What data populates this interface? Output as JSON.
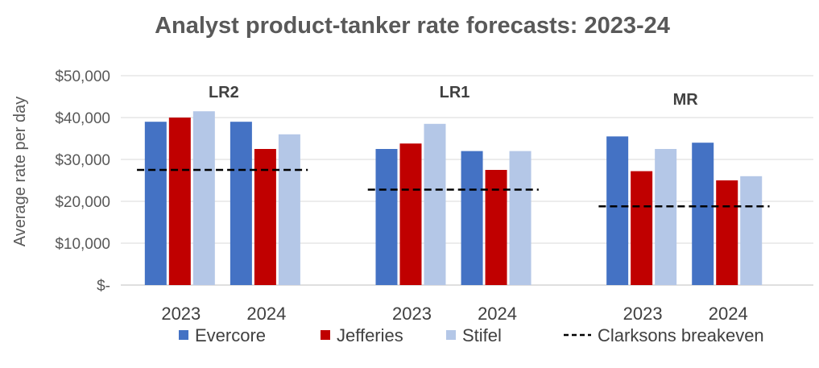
{
  "chart_data": {
    "type": "bar",
    "title": "Analyst product-tanker rate forecasts: 2023-24",
    "ylabel": "Average rate per day",
    "ylim": [
      0,
      50000
    ],
    "yticks": [
      {
        "value": 0,
        "label": "$-"
      },
      {
        "value": 10000,
        "label": "$10,000"
      },
      {
        "value": 20000,
        "label": "$20,000"
      },
      {
        "value": 30000,
        "label": "$30,000"
      },
      {
        "value": 40000,
        "label": "$40,000"
      },
      {
        "value": 50000,
        "label": "$50,000"
      }
    ],
    "grid": true,
    "legend_position": "bottom",
    "groups": [
      {
        "name": "LR2",
        "breakeven": 27500,
        "years": [
          {
            "year": "2023",
            "values": [
              39000,
              40000,
              41500
            ]
          },
          {
            "year": "2024",
            "values": [
              39000,
              32500,
              36000
            ]
          }
        ]
      },
      {
        "name": "LR1",
        "breakeven": 22800,
        "years": [
          {
            "year": "2023",
            "values": [
              32500,
              33800,
              38500
            ]
          },
          {
            "year": "2024",
            "values": [
              32000,
              27500,
              32000
            ]
          }
        ]
      },
      {
        "name": "MR",
        "breakeven": 18800,
        "years": [
          {
            "year": "2023",
            "values": [
              35500,
              27200,
              32500
            ]
          },
          {
            "year": "2024",
            "values": [
              34000,
              25000,
              26000
            ]
          }
        ]
      }
    ],
    "series": [
      {
        "name": "Evercore",
        "color": "#4472C4"
      },
      {
        "name": "Jefferies",
        "color": "#C00000"
      },
      {
        "name": "Stifel",
        "color": "#B4C7E7"
      }
    ],
    "breakeven_series": {
      "name": "Clarksons breakeven",
      "color": "#000000",
      "style": "dashed"
    }
  }
}
